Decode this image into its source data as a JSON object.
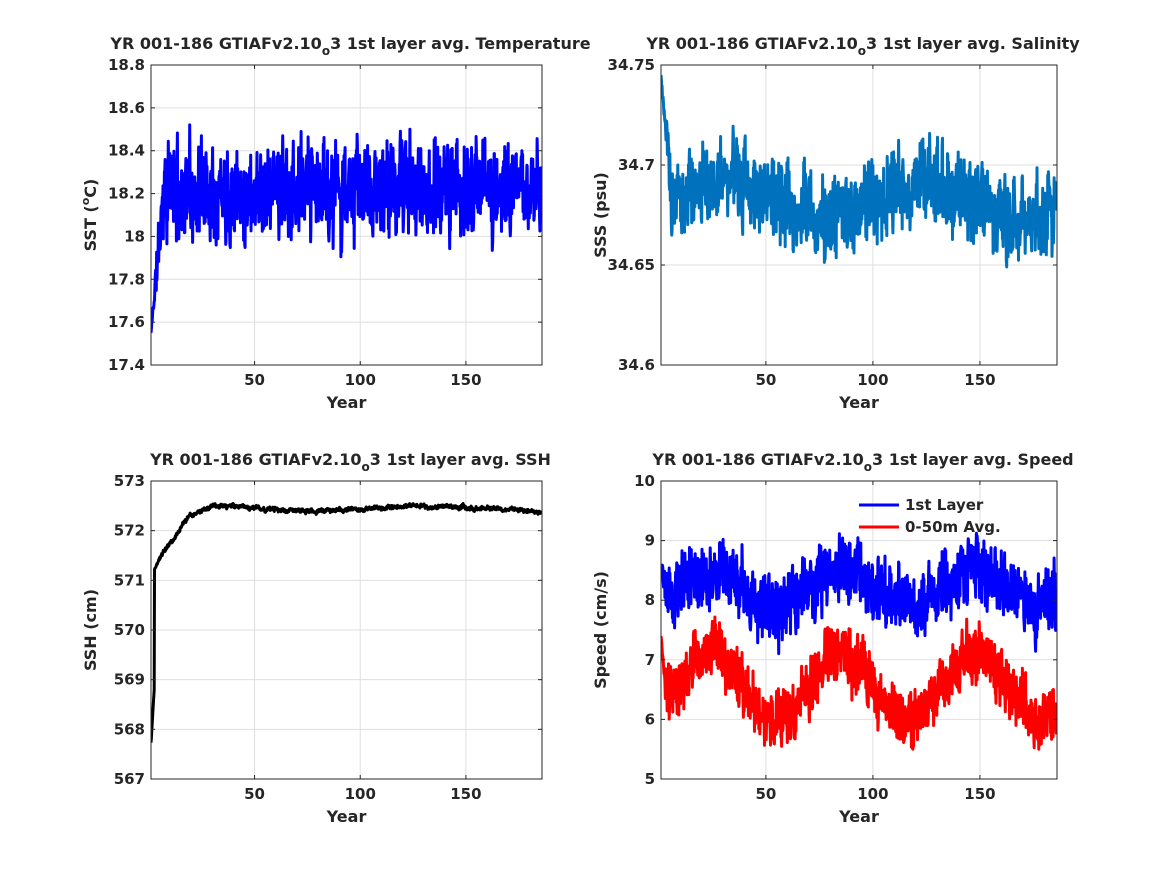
{
  "chart_data": [
    {
      "type": "line",
      "title_parts": [
        "YR 001-186 GTIAFv2.10",
        "o",
        "3 1st layer avg. Temperature"
      ],
      "xlabel": "Year",
      "ylabel": "SST (",
      "ylabel_sup": "o",
      "ylabel_end": "C)",
      "xlim": [
        1,
        186
      ],
      "ylim": [
        17.4,
        18.8
      ],
      "xticks": [
        50,
        100,
        150
      ],
      "yticks": [
        17.4,
        17.6,
        17.8,
        18,
        18.2,
        18.4,
        18.6,
        18.8
      ],
      "grid": true,
      "series": [
        {
          "color": "#0000ff",
          "generator": {
            "kind": "noise",
            "base": 18.22,
            "amp": 0.24,
            "start": 17.55,
            "settle": 6,
            "min": 17.5,
            "max": 18.74,
            "seed": 11,
            "x_start": 1,
            "x_end": 186,
            "points_per_unit": 6
          }
        }
      ]
    },
    {
      "type": "line",
      "title_parts": [
        "YR 001-186 GTIAFv2.10",
        "o",
        "3 1st layer avg. Salinity"
      ],
      "xlabel": "Year",
      "ylabel": "SSS (psu)",
      "xlim": [
        1,
        186
      ],
      "ylim": [
        34.6,
        34.75
      ],
      "xticks": [
        50,
        100,
        150
      ],
      "yticks": [
        34.6,
        34.65,
        34.7,
        34.75
      ],
      "grid": true,
      "series": [
        {
          "color": "#0072bd",
          "generator": {
            "kind": "noise-wave",
            "base": 34.683,
            "amp": 0.022,
            "wave_amp": 0.01,
            "wave_period": 93,
            "start": 34.745,
            "settle": 5,
            "min": 34.61,
            "max": 34.745,
            "seed": 23,
            "x_start": 1,
            "x_end": 186,
            "points_per_unit": 6
          }
        }
      ]
    },
    {
      "type": "line",
      "title_parts": [
        "YR 001-186 GTIAFv2.10",
        "o",
        "3 1st layer avg. SSH"
      ],
      "xlabel": "Year",
      "ylabel": "SSH (cm)",
      "xlim": [
        1,
        186
      ],
      "ylim": [
        567,
        573
      ],
      "xticks": [
        50,
        100,
        150
      ],
      "yticks": [
        567,
        568,
        569,
        570,
        571,
        572,
        573
      ],
      "grid": true,
      "series": [
        {
          "color": "#000000",
          "generator": {
            "kind": "spinup",
            "start": 567.7,
            "plateau": 572.45,
            "tau": 13,
            "amp": 0.06,
            "seed": 37,
            "x_start": 1,
            "x_end": 186,
            "points_per_unit": 6
          }
        }
      ]
    },
    {
      "type": "line",
      "title_parts": [
        "YR 001-186 GTIAFv2.10",
        "o",
        "3 1st layer avg. Speed"
      ],
      "xlabel": "Year",
      "ylabel": "Speed (cm/s)",
      "xlim": [
        1,
        186
      ],
      "ylim": [
        5,
        10
      ],
      "xticks": [
        50,
        100,
        150
      ],
      "yticks": [
        5,
        6,
        7,
        8,
        9,
        10
      ],
      "grid": true,
      "legend": "top-right",
      "series": [
        {
          "name": "1st Layer",
          "color": "#0000ff",
          "generator": {
            "kind": "noise-wave",
            "base": 8.2,
            "amp": 0.62,
            "wave_amp": 0.3,
            "wave_period": 62,
            "start": 8.6,
            "settle": 3,
            "min": 7.0,
            "max": 9.9,
            "seed": 51,
            "x_start": 1,
            "x_end": 186,
            "points_per_unit": 6
          }
        },
        {
          "name": "0-50m Avg.",
          "color": "#ff0000",
          "generator": {
            "kind": "noise-wave",
            "base": 6.55,
            "amp": 0.55,
            "wave_amp": 0.55,
            "wave_period": 62,
            "start": 7.4,
            "settle": 3,
            "min": 5.5,
            "max": 8.5,
            "seed": 67,
            "x_start": 1,
            "x_end": 186,
            "points_per_unit": 6
          }
        }
      ]
    }
  ]
}
